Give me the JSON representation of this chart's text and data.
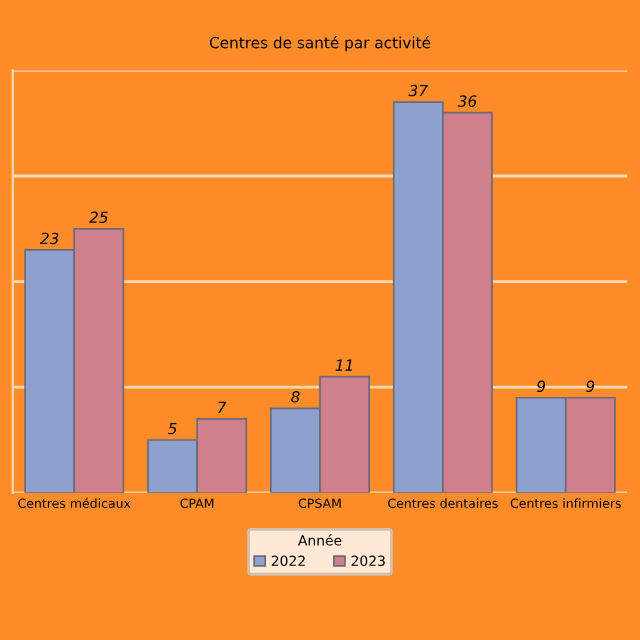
{
  "chart_data": {
    "type": "bar",
    "title": "Centres de santé par activité",
    "categories": [
      "Centres médicaux",
      "CPAM",
      "CPSAM",
      "Centres dentaires",
      "Centres infirmiers"
    ],
    "series": [
      {
        "name": "2022",
        "color": "#8ea0cc",
        "values": [
          23,
          5,
          8,
          37,
          9
        ]
      },
      {
        "name": "2023",
        "color": "#d0808a",
        "values": [
          25,
          7,
          11,
          36,
          9
        ]
      }
    ],
    "ylim": [
      0,
      40
    ],
    "yticks": [
      {
        "value": 0,
        "label": null
      },
      {
        "value": 10,
        "label": null
      },
      {
        "value": 20,
        "label": null
      },
      {
        "value": 30,
        "label": null
      },
      {
        "value": 40,
        "label": null
      }
    ],
    "tick_labels": "x",
    "grid": "y",
    "data_labels": true,
    "legend": "bottom",
    "legend_title": "Année"
  }
}
